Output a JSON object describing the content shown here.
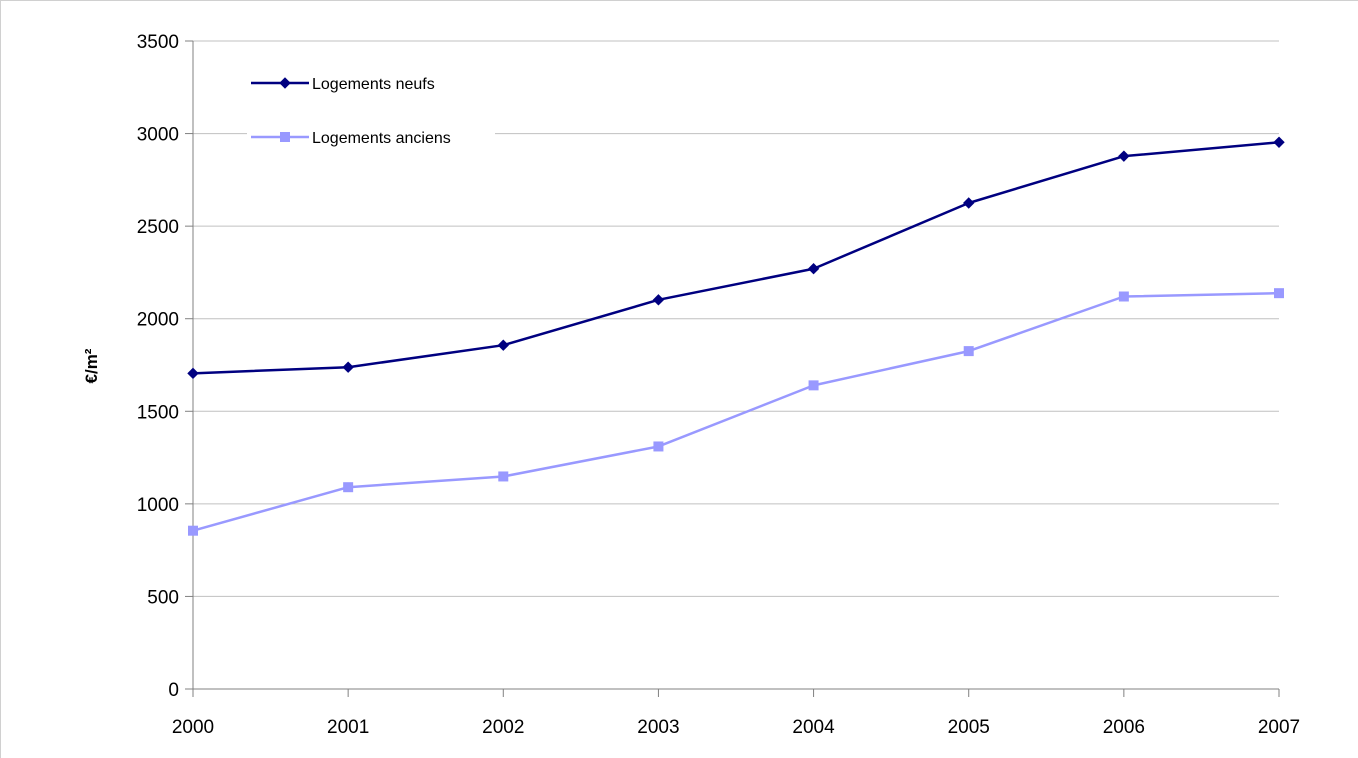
{
  "chart_data": {
    "type": "line",
    "title": "",
    "xlabel": "",
    "ylabel": "€/m²",
    "categories": [
      "2000",
      "2001",
      "2002",
      "2003",
      "2004",
      "2005",
      "2006",
      "2007"
    ],
    "ylim": [
      0,
      3500
    ],
    "yticks": [
      0,
      500,
      1000,
      1500,
      2000,
      2500,
      3000,
      3500
    ],
    "grid": true,
    "legend_position": "top-left",
    "series": [
      {
        "name": "Logements neufs",
        "values": [
          1705,
          1738,
          1857,
          2102,
          2270,
          2625,
          2878,
          2953
        ],
        "color": "#000080",
        "marker": "diamond"
      },
      {
        "name": "Logements anciens",
        "values": [
          855,
          1090,
          1148,
          1310,
          1640,
          1825,
          2120,
          2138
        ],
        "color": "#9999ff",
        "marker": "square"
      }
    ]
  }
}
